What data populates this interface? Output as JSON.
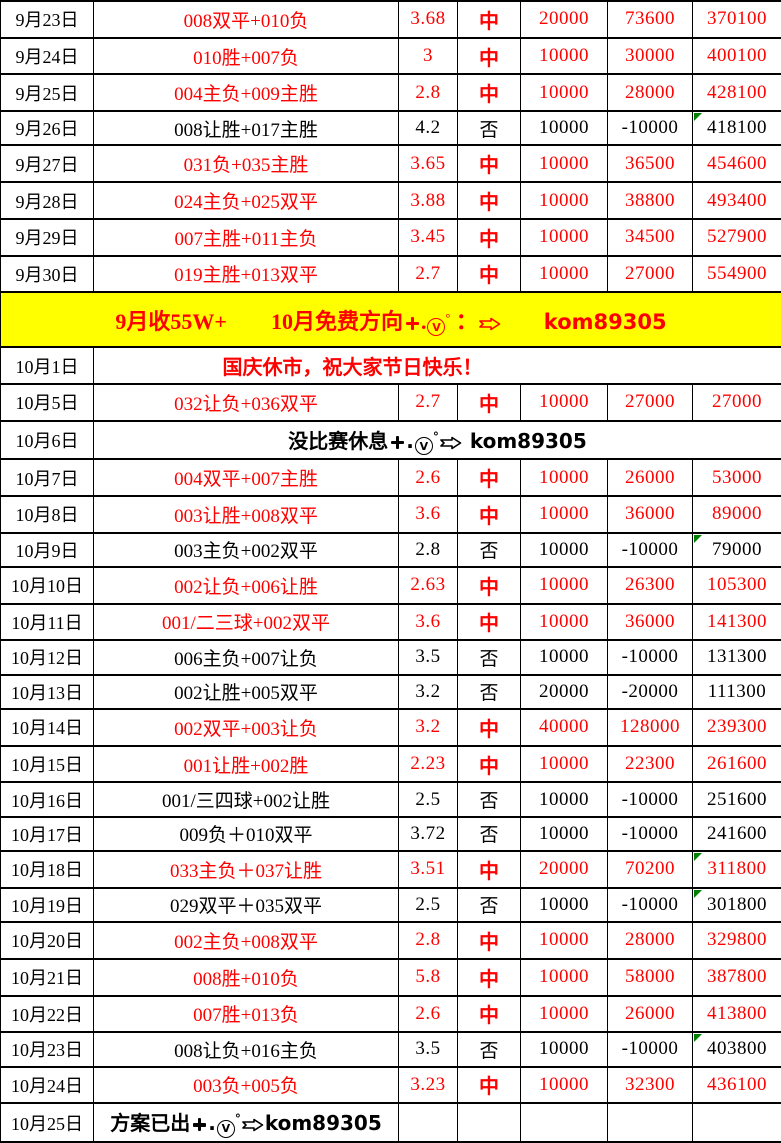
{
  "colors": {
    "win_text": "#ff0000",
    "loss_text": "#000000",
    "banner_background": "#ffff00",
    "banner_text": "#ff0000",
    "comment_marker_green": "#008000",
    "grid_border": "#000000"
  },
  "icons": {
    "plus_icon": "heavy plus ✚ (CSS cross shape)",
    "circled_v_icon": "letter V in circle",
    "degree_mark": "°",
    "arrow_icon": "outlined right arrow ⇨ (SVG)",
    "comment_marker_icon": "green corner triangle (CSS)"
  },
  "promo_symbols": {
    "dot": ".",
    "v": "V",
    "deg": "°"
  },
  "rows": [
    {
      "type": "bet",
      "date": "9月23日",
      "plan": "008双平+010负",
      "odds": "3.68",
      "result": "中",
      "stake": "20000",
      "profit": "73600",
      "total": "370100",
      "win": true,
      "marker": false
    },
    {
      "type": "bet",
      "date": "9月24日",
      "plan": "010胜+007负",
      "odds": "3",
      "result": "中",
      "stake": "10000",
      "profit": "30000",
      "total": "400100",
      "win": true,
      "marker": false
    },
    {
      "type": "bet",
      "date": "9月25日",
      "plan": "004主负+009主胜",
      "odds": "2.8",
      "result": "中",
      "stake": "10000",
      "profit": "28000",
      "total": "428100",
      "win": true,
      "marker": false
    },
    {
      "type": "bet",
      "date": "9月26日",
      "plan": "008让胜+017主胜",
      "odds": "4.2",
      "result": "否",
      "stake": "10000",
      "profit": "-10000",
      "total": "418100",
      "win": false,
      "marker": true
    },
    {
      "type": "bet",
      "date": "9月27日",
      "plan": "031负+035主胜",
      "odds": "3.65",
      "result": "中",
      "stake": "10000",
      "profit": "36500",
      "total": "454600",
      "win": true,
      "marker": false
    },
    {
      "type": "bet",
      "date": "9月28日",
      "plan": "024主负+025双平",
      "odds": "3.88",
      "result": "中",
      "stake": "10000",
      "profit": "38800",
      "total": "493400",
      "win": true,
      "marker": false
    },
    {
      "type": "bet",
      "date": "9月29日",
      "plan": "007主胜+011主负",
      "odds": "3.45",
      "result": "中",
      "stake": "10000",
      "profit": "34500",
      "total": "527900",
      "win": true,
      "marker": false
    },
    {
      "type": "bet",
      "date": "9月30日",
      "plan": "019主胜+013双平",
      "odds": "2.7",
      "result": "中",
      "stake": "10000",
      "profit": "27000",
      "total": "554900",
      "win": true,
      "marker": false
    },
    {
      "type": "banner",
      "pre": "9月收55W+　　10月免费方向",
      "mid": " ：",
      "account": "　　kom89305"
    },
    {
      "type": "notice",
      "date": "10月1日",
      "text": "国庆休市，祝大家节日快乐！"
    },
    {
      "type": "bet",
      "date": "10月5日",
      "plan": "032让负+036双平",
      "odds": "2.7",
      "result": "中",
      "stake": "10000",
      "profit": "27000",
      "total": "27000",
      "win": true,
      "marker": false
    },
    {
      "type": "promo_merged",
      "date": "10月6日",
      "pre": "没比赛休息",
      "mid": "",
      "account": " kom89305"
    },
    {
      "type": "bet",
      "date": "10月7日",
      "plan": "004双平+007主胜",
      "odds": "2.6",
      "result": "中",
      "stake": "10000",
      "profit": "26000",
      "total": "53000",
      "win": true,
      "marker": false
    },
    {
      "type": "bet",
      "date": "10月8日",
      "plan": "003让胜+008双平",
      "odds": "3.6",
      "result": "中",
      "stake": "10000",
      "profit": "36000",
      "total": "89000",
      "win": true,
      "marker": false
    },
    {
      "type": "bet",
      "date": "10月9日",
      "plan": "003主负+002双平",
      "odds": "2.8",
      "result": "否",
      "stake": "10000",
      "profit": "-10000",
      "total": "79000",
      "win": false,
      "marker": true
    },
    {
      "type": "bet",
      "date": "10月10日",
      "plan": "002让负+006让胜",
      "odds": "2.63",
      "result": "中",
      "stake": "10000",
      "profit": "26300",
      "total": "105300",
      "win": true,
      "marker": false
    },
    {
      "type": "bet",
      "date": "10月11日",
      "plan": "001/二三球+002双平",
      "odds": "3.6",
      "result": "中",
      "stake": "10000",
      "profit": "36000",
      "total": "141300",
      "win": true,
      "marker": false
    },
    {
      "type": "bet",
      "date": "10月12日",
      "plan": "006主负+007让负",
      "odds": "3.5",
      "result": "否",
      "stake": "10000",
      "profit": "-10000",
      "total": "131300",
      "win": false,
      "marker": false
    },
    {
      "type": "bet",
      "date": "10月13日",
      "plan": "002让胜+005双平",
      "odds": "3.2",
      "result": "否",
      "stake": "20000",
      "profit": "-20000",
      "total": "111300",
      "win": false,
      "marker": false
    },
    {
      "type": "bet",
      "date": "10月14日",
      "plan": "002双平+003让负",
      "odds": "3.2",
      "result": "中",
      "stake": "40000",
      "profit": "128000",
      "total": "239300",
      "win": true,
      "marker": false
    },
    {
      "type": "bet",
      "date": "10月15日",
      "plan": "001让胜+002胜",
      "odds": "2.23",
      "result": "中",
      "stake": "10000",
      "profit": "22300",
      "total": "261600",
      "win": true,
      "marker": false
    },
    {
      "type": "bet",
      "date": "10月16日",
      "plan": "001/三四球+002让胜",
      "odds": "2.5",
      "result": "否",
      "stake": "10000",
      "profit": "-10000",
      "total": "251600",
      "win": false,
      "marker": false
    },
    {
      "type": "bet",
      "date": "10月17日",
      "plan": "009负＋010双平",
      "odds": "3.72",
      "result": "否",
      "stake": "10000",
      "profit": "-10000",
      "total": "241600",
      "win": false,
      "marker": false
    },
    {
      "type": "bet",
      "date": "10月18日",
      "plan": "033主负＋037让胜",
      "odds": "3.51",
      "result": "中",
      "stake": "20000",
      "profit": "70200",
      "total": "311800",
      "win": true,
      "marker": true
    },
    {
      "type": "bet",
      "date": "10月19日",
      "plan": "029双平＋035双平",
      "odds": "2.5",
      "result": "否",
      "stake": "10000",
      "profit": "-10000",
      "total": "301800",
      "win": false,
      "marker": true
    },
    {
      "type": "bet",
      "date": "10月20日",
      "plan": "002主负+008双平",
      "odds": "2.8",
      "result": "中",
      "stake": "10000",
      "profit": "28000",
      "total": "329800",
      "win": true,
      "marker": false
    },
    {
      "type": "bet",
      "date": "10月21日",
      "plan": "008胜+010负",
      "odds": "5.8",
      "result": "中",
      "stake": "10000",
      "profit": "58000",
      "total": "387800",
      "win": true,
      "marker": false
    },
    {
      "type": "bet",
      "date": "10月22日",
      "plan": "007胜+013负",
      "odds": "2.6",
      "result": "中",
      "stake": "10000",
      "profit": "26000",
      "total": "413800",
      "win": true,
      "marker": false
    },
    {
      "type": "bet",
      "date": "10月23日",
      "plan": "008让负+016主负",
      "odds": "3.5",
      "result": "否",
      "stake": "10000",
      "profit": "-10000",
      "total": "403800",
      "win": false,
      "marker": true
    },
    {
      "type": "bet",
      "date": "10月24日",
      "plan": "003负+005负",
      "odds": "3.23",
      "result": "中",
      "stake": "10000",
      "profit": "32300",
      "total": "436100",
      "win": true,
      "marker": false
    },
    {
      "type": "promo_plan",
      "date": "10月25日",
      "pre": "方案已出",
      "mid": "",
      "account": "kom89305"
    }
  ]
}
